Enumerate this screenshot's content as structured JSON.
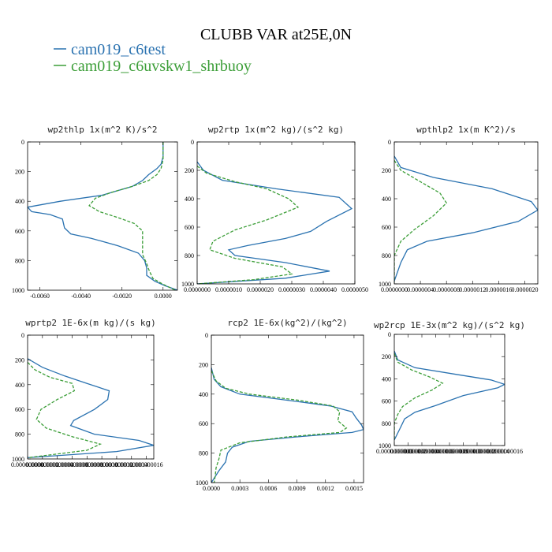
{
  "figure_title": "CLUBB VAR at25E,0N",
  "legend": [
    {
      "label": "cam019_c6test",
      "color": "#2a72b0",
      "dash": "solid"
    },
    {
      "label": "cam019_c6uvskw1_shrbuoy",
      "color": "#3c9e38",
      "dash": "dashed"
    }
  ],
  "chart_data": [
    {
      "type": "line",
      "title": "wp2thlp  1x(m^2 K)/s^2",
      "xlim": [
        -0.0066,
        0.0007
      ],
      "ylim": [
        1000,
        0
      ],
      "xticks": [
        -0.006,
        -0.004,
        -0.002,
        0.0
      ],
      "xtick_labels": [
        "-0.0060",
        "-0.0040",
        "-0.0020",
        "0.0000"
      ],
      "yticks": [
        0,
        200,
        400,
        600,
        800,
        1000
      ],
      "ytick_labels": [
        "0",
        "200",
        "400",
        "600",
        "800",
        "1000"
      ],
      "series": [
        {
          "name": "cam019_c6test",
          "points": [
            [
              0.0,
              0
            ],
            [
              0.0,
              100
            ],
            [
              -0.0001,
              150
            ],
            [
              -0.0003,
              180
            ],
            [
              -0.0007,
              220
            ],
            [
              -0.001,
              260
            ],
            [
              -0.0015,
              300
            ],
            [
              -0.003,
              360
            ],
            [
              -0.005,
              400
            ],
            [
              -0.0066,
              440
            ],
            [
              -0.0064,
              470
            ],
            [
              -0.0055,
              490
            ],
            [
              -0.0049,
              520
            ],
            [
              -0.0048,
              580
            ],
            [
              -0.0045,
              620
            ],
            [
              -0.0035,
              650
            ],
            [
              -0.0022,
              700
            ],
            [
              -0.0012,
              750
            ],
            [
              -0.0009,
              800
            ],
            [
              -0.0008,
              850
            ],
            [
              -0.0008,
              900
            ],
            [
              -0.0004,
              940
            ],
            [
              0.0001,
              970
            ],
            [
              0.0007,
              1000
            ]
          ]
        },
        {
          "name": "cam019_c6uvskw1_shrbuoy",
          "points": [
            [
              0.0,
              0
            ],
            [
              0.0,
              120
            ],
            [
              -0.0001,
              180
            ],
            [
              -0.0003,
              220
            ],
            [
              -0.0007,
              260
            ],
            [
              -0.0015,
              300
            ],
            [
              -0.0025,
              340
            ],
            [
              -0.0033,
              380
            ],
            [
              -0.0036,
              430
            ],
            [
              -0.0031,
              470
            ],
            [
              -0.0022,
              510
            ],
            [
              -0.0014,
              550
            ],
            [
              -0.001,
              600
            ],
            [
              -0.001,
              680
            ],
            [
              -0.001,
              760
            ],
            [
              -0.0008,
              820
            ],
            [
              -0.0007,
              860
            ],
            [
              -0.0005,
              920
            ],
            [
              0.0,
              960
            ],
            [
              0.0006,
              1000
            ]
          ]
        }
      ]
    },
    {
      "type": "line",
      "title": "wp2rtp  1x(m^2 kg)/(s^2 kg)",
      "xlim": [
        0.0,
        5e-06
      ],
      "ylim": [
        1000,
        0
      ],
      "xticks": [
        0.0,
        1e-06,
        2e-06,
        3e-06,
        4e-06,
        5e-06
      ],
      "xtick_labels": [
        "0.0000000",
        "0.0000010",
        "0.0000020",
        "0.0000030",
        "0.0000040",
        "0.0000050"
      ],
      "yticks": [
        0,
        200,
        400,
        600,
        800,
        1000
      ],
      "ytick_labels": [
        "0",
        "200",
        "400",
        "600",
        "800",
        "1000"
      ],
      "series": [
        {
          "name": "cam019_c6test",
          "points": [
            [
              0.0,
              140
            ],
            [
              2e-07,
              200
            ],
            [
              8e-07,
              270
            ],
            [
              2.5e-06,
              330
            ],
            [
              4.5e-06,
              390
            ],
            [
              4.9e-06,
              470
            ],
            [
              4.1e-06,
              560
            ],
            [
              3.6e-06,
              630
            ],
            [
              2.8e-06,
              680
            ],
            [
              1.6e-06,
              730
            ],
            [
              1e-06,
              760
            ],
            [
              1.2e-06,
              800
            ],
            [
              2.8e-06,
              850
            ],
            [
              4.2e-06,
              910
            ],
            [
              2.8e-06,
              960
            ],
            [
              0.0,
              1000
            ]
          ]
        },
        {
          "name": "cam019_c6uvskw1_shrbuoy",
          "points": [
            [
              0.0,
              170
            ],
            [
              3e-07,
              220
            ],
            [
              1.2e-06,
              280
            ],
            [
              2.2e-06,
              330
            ],
            [
              2.9e-06,
              400
            ],
            [
              3.2e-06,
              460
            ],
            [
              2.2e-06,
              550
            ],
            [
              1.2e-06,
              620
            ],
            [
              5e-07,
              700
            ],
            [
              4e-07,
              760
            ],
            [
              1.2e-06,
              820
            ],
            [
              2.7e-06,
              880
            ],
            [
              3e-06,
              930
            ],
            [
              1.8e-06,
              970
            ],
            [
              0.0,
              1000
            ]
          ]
        }
      ]
    },
    {
      "type": "line",
      "title": "wpthlp2  1x(m K^2)/s",
      "xlim": [
        0.0,
        2.2e-06
      ],
      "ylim": [
        1000,
        0
      ],
      "xticks": [
        0.0,
        4e-07,
        8e-07,
        1.2e-06,
        1.6e-06,
        2e-06
      ],
      "xtick_labels": [
        "0.0000000",
        "0.0000004",
        "0.0000008",
        "0.0000012",
        "0.0000016",
        "0.0000020"
      ],
      "yticks": [
        0,
        200,
        400,
        600,
        800,
        1000
      ],
      "ytick_labels": [
        "0",
        "200",
        "400",
        "600",
        "800",
        "1000"
      ],
      "series": [
        {
          "name": "cam019_c6test",
          "points": [
            [
              0.0,
              100
            ],
            [
              1e-07,
              180
            ],
            [
              6e-07,
              250
            ],
            [
              1.5e-06,
              330
            ],
            [
              2.1e-06,
              420
            ],
            [
              2.2e-06,
              480
            ],
            [
              1.9e-06,
              560
            ],
            [
              1.2e-06,
              640
            ],
            [
              5e-07,
              700
            ],
            [
              2e-07,
              760
            ],
            [
              1e-07,
              850
            ],
            [
              0.0,
              980
            ]
          ]
        },
        {
          "name": "cam019_c6uvskw1_shrbuoy",
          "points": [
            [
              0.0,
              130
            ],
            [
              1e-07,
              200
            ],
            [
              4e-07,
              280
            ],
            [
              7e-07,
              360
            ],
            [
              8e-07,
              430
            ],
            [
              6e-07,
              520
            ],
            [
              3e-07,
              620
            ],
            [
              1e-07,
              700
            ],
            [
              0.0,
              800
            ],
            [
              0.0,
              990
            ]
          ]
        }
      ]
    },
    {
      "type": "line",
      "title": "wprtp2  1E-6x(m kg)/(s kg)",
      "xlim": [
        0.0,
        1.7e-08
      ],
      "ylim": [
        1000,
        0
      ],
      "xticks": [
        0.0,
        2e-09,
        4e-09,
        6e-09,
        8e-09,
        1e-08,
        1.2e-08,
        1.4e-08,
        1.6e-08
      ],
      "xtick_labels": [
        "0.000000000",
        "0.000000002",
        "0.000000004",
        "0.000000006",
        "0.000000008",
        "0.000000010",
        "0.000000012",
        "0.000000014",
        "0.000000016"
      ],
      "yticks": [
        0,
        200,
        400,
        600,
        800,
        1000
      ],
      "ytick_labels": [
        "0",
        "200",
        "400",
        "600",
        "800",
        "1000"
      ],
      "series": [
        {
          "name": "cam019_c6test",
          "points": [
            [
              0.0,
              190
            ],
            [
              2e-09,
              260
            ],
            [
              5e-09,
              330
            ],
            [
              8e-09,
              390
            ],
            [
              1.1e-08,
              450
            ],
            [
              1.08e-08,
              520
            ],
            [
              9e-09,
              600
            ],
            [
              6.2e-09,
              690
            ],
            [
              5.8e-09,
              730
            ],
            [
              9e-09,
              800
            ],
            [
              1.5e-08,
              850
            ],
            [
              1.7e-08,
              890
            ],
            [
              1.2e-08,
              940
            ],
            [
              0.0,
              990
            ]
          ]
        },
        {
          "name": "cam019_c6uvskw1_shrbuoy",
          "points": [
            [
              0.0,
              220
            ],
            [
              1e-09,
              280
            ],
            [
              3e-09,
              340
            ],
            [
              6e-09,
              390
            ],
            [
              6.3e-09,
              450
            ],
            [
              4e-09,
              520
            ],
            [
              1.8e-09,
              600
            ],
            [
              1.2e-09,
              680
            ],
            [
              2.5e-09,
              750
            ],
            [
              6e-09,
              820
            ],
            [
              9.8e-09,
              880
            ],
            [
              8e-09,
              930
            ],
            [
              0.0,
              990
            ]
          ]
        }
      ]
    },
    {
      "type": "line",
      "title": "rcp2  1E-6x(kg^2)/(kg^2)",
      "xlim": [
        0.0,
        0.0016
      ],
      "ylim": [
        1000,
        0
      ],
      "xticks": [
        0.0,
        0.0003,
        0.0006,
        0.0009,
        0.0012,
        0.0015
      ],
      "xtick_labels": [
        "0.0000",
        "0.0003",
        "0.0006",
        "0.0009",
        "0.0012",
        "0.0015"
      ],
      "yticks": [
        0,
        200,
        400,
        600,
        800,
        1000
      ],
      "ytick_labels": [
        "0",
        "200",
        "400",
        "600",
        "800",
        "1000"
      ],
      "series": [
        {
          "name": "cam019_c6test",
          "points": [
            [
              0.0,
              220
            ],
            [
              3e-05,
              300
            ],
            [
              0.0001,
              350
            ],
            [
              0.0003,
              400
            ],
            [
              0.0009,
              450
            ],
            [
              0.00125,
              480
            ],
            [
              0.00148,
              520
            ],
            [
              0.00152,
              560
            ],
            [
              0.00158,
              610
            ],
            [
              0.0016,
              640
            ],
            [
              0.00148,
              660
            ],
            [
              0.0009,
              690
            ],
            [
              0.0004,
              720
            ],
            [
              0.00022,
              760
            ],
            [
              0.00017,
              800
            ],
            [
              0.00015,
              860
            ],
            [
              8e-05,
              920
            ],
            [
              3e-05,
              970
            ],
            [
              0.0,
              1000
            ]
          ]
        },
        {
          "name": "cam019_c6uvskw1_shrbuoy",
          "points": [
            [
              0.0,
              240
            ],
            [
              5e-05,
              310
            ],
            [
              0.00015,
              360
            ],
            [
              0.0004,
              400
            ],
            [
              0.0009,
              440
            ],
            [
              0.00128,
              480
            ],
            [
              0.00135,
              520
            ],
            [
              0.00133,
              580
            ],
            [
              0.00142,
              630
            ],
            [
              0.00135,
              660
            ],
            [
              0.0008,
              690
            ],
            [
              0.0003,
              730
            ],
            [
              0.0001,
              780
            ],
            [
              8e-05,
              840
            ],
            [
              5e-05,
              900
            ],
            [
              4e-05,
              960
            ],
            [
              3e-05,
              1000
            ]
          ]
        }
      ]
    },
    {
      "type": "line",
      "title": "wp2rcp  1E-3x(m^2 kg)/(s^2 kg)",
      "xlim": [
        0.0,
        1.6e-09
      ],
      "ylim": [
        1000,
        0
      ],
      "xticks": [
        0.0,
        2e-10,
        4e-10,
        6e-10,
        8e-10,
        1e-09,
        1.2e-09,
        1.4e-09,
        1.6e-09
      ],
      "xtick_labels": [
        "0.0000000000",
        "0.0000000002",
        "0.0000000004",
        "0.0000000006",
        "0.0000000008",
        "0.0000000010",
        "0.0000000012",
        "0.0000000014",
        "0.0000000016"
      ],
      "yticks": [
        0,
        200,
        400,
        600,
        800,
        1000
      ],
      "ytick_labels": [
        "0",
        "200",
        "400",
        "600",
        "800",
        "1000"
      ],
      "series": [
        {
          "name": "cam019_c6test",
          "points": [
            [
              0.0,
              150
            ],
            [
              5e-11,
              230
            ],
            [
              3e-10,
              300
            ],
            [
              9e-10,
              360
            ],
            [
              1.4e-09,
              410
            ],
            [
              1.6e-09,
              450
            ],
            [
              1.5e-09,
              480
            ],
            [
              1e-09,
              550
            ],
            [
              6e-10,
              640
            ],
            [
              3e-10,
              700
            ],
            [
              1.5e-10,
              760
            ],
            [
              8e-11,
              850
            ],
            [
              0.0,
              950
            ]
          ]
        },
        {
          "name": "cam019_c6uvskw1_shrbuoy",
          "points": [
            [
              0.0,
              170
            ],
            [
              5e-11,
              250
            ],
            [
              2.5e-10,
              320
            ],
            [
              5e-10,
              380
            ],
            [
              7e-10,
              440
            ],
            [
              5.5e-10,
              500
            ],
            [
              3e-10,
              570
            ],
            [
              1.2e-10,
              650
            ],
            [
              5e-11,
              720
            ],
            [
              0.0,
              800
            ],
            [
              0.0,
              950
            ]
          ]
        }
      ]
    }
  ]
}
